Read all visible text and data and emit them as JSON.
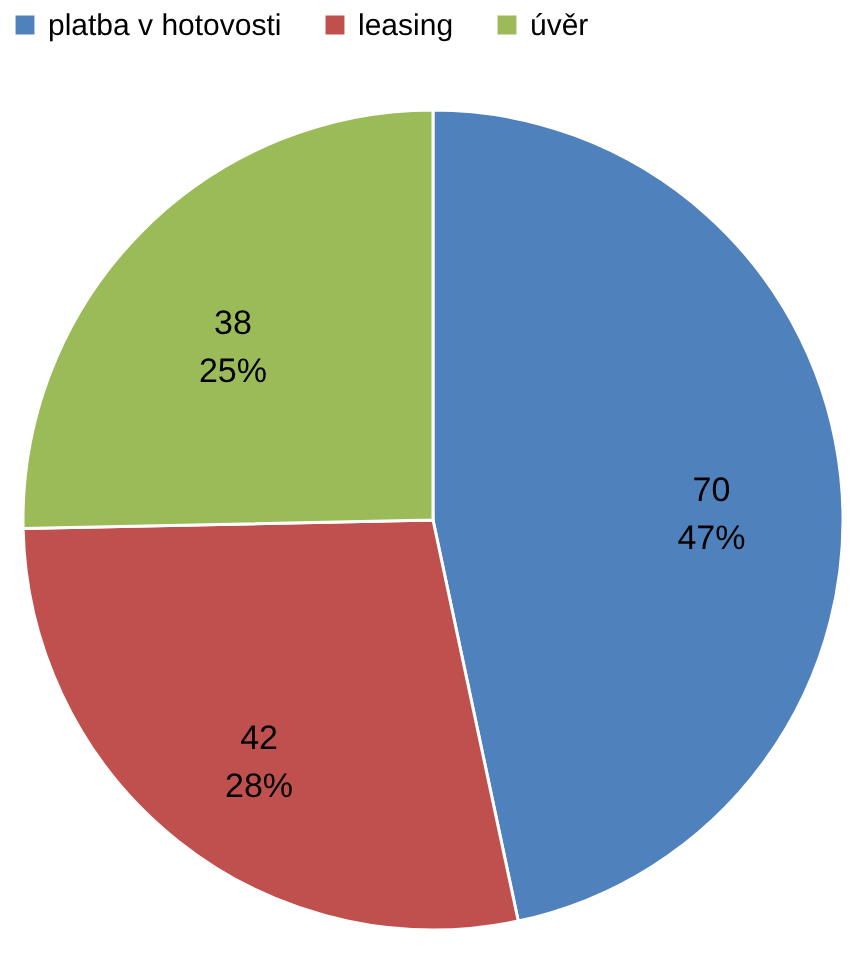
{
  "chart_data": {
    "type": "pie",
    "categories": [
      "platba v hotovosti",
      "leasing",
      "úvěr"
    ],
    "values": [
      70,
      42,
      38
    ],
    "colors": [
      "#4f81bd",
      "#c0504d",
      "#9bbb59"
    ],
    "value_labels": [
      "70\n47%",
      "42\n28%",
      "38\n25%"
    ],
    "legend": "top"
  }
}
